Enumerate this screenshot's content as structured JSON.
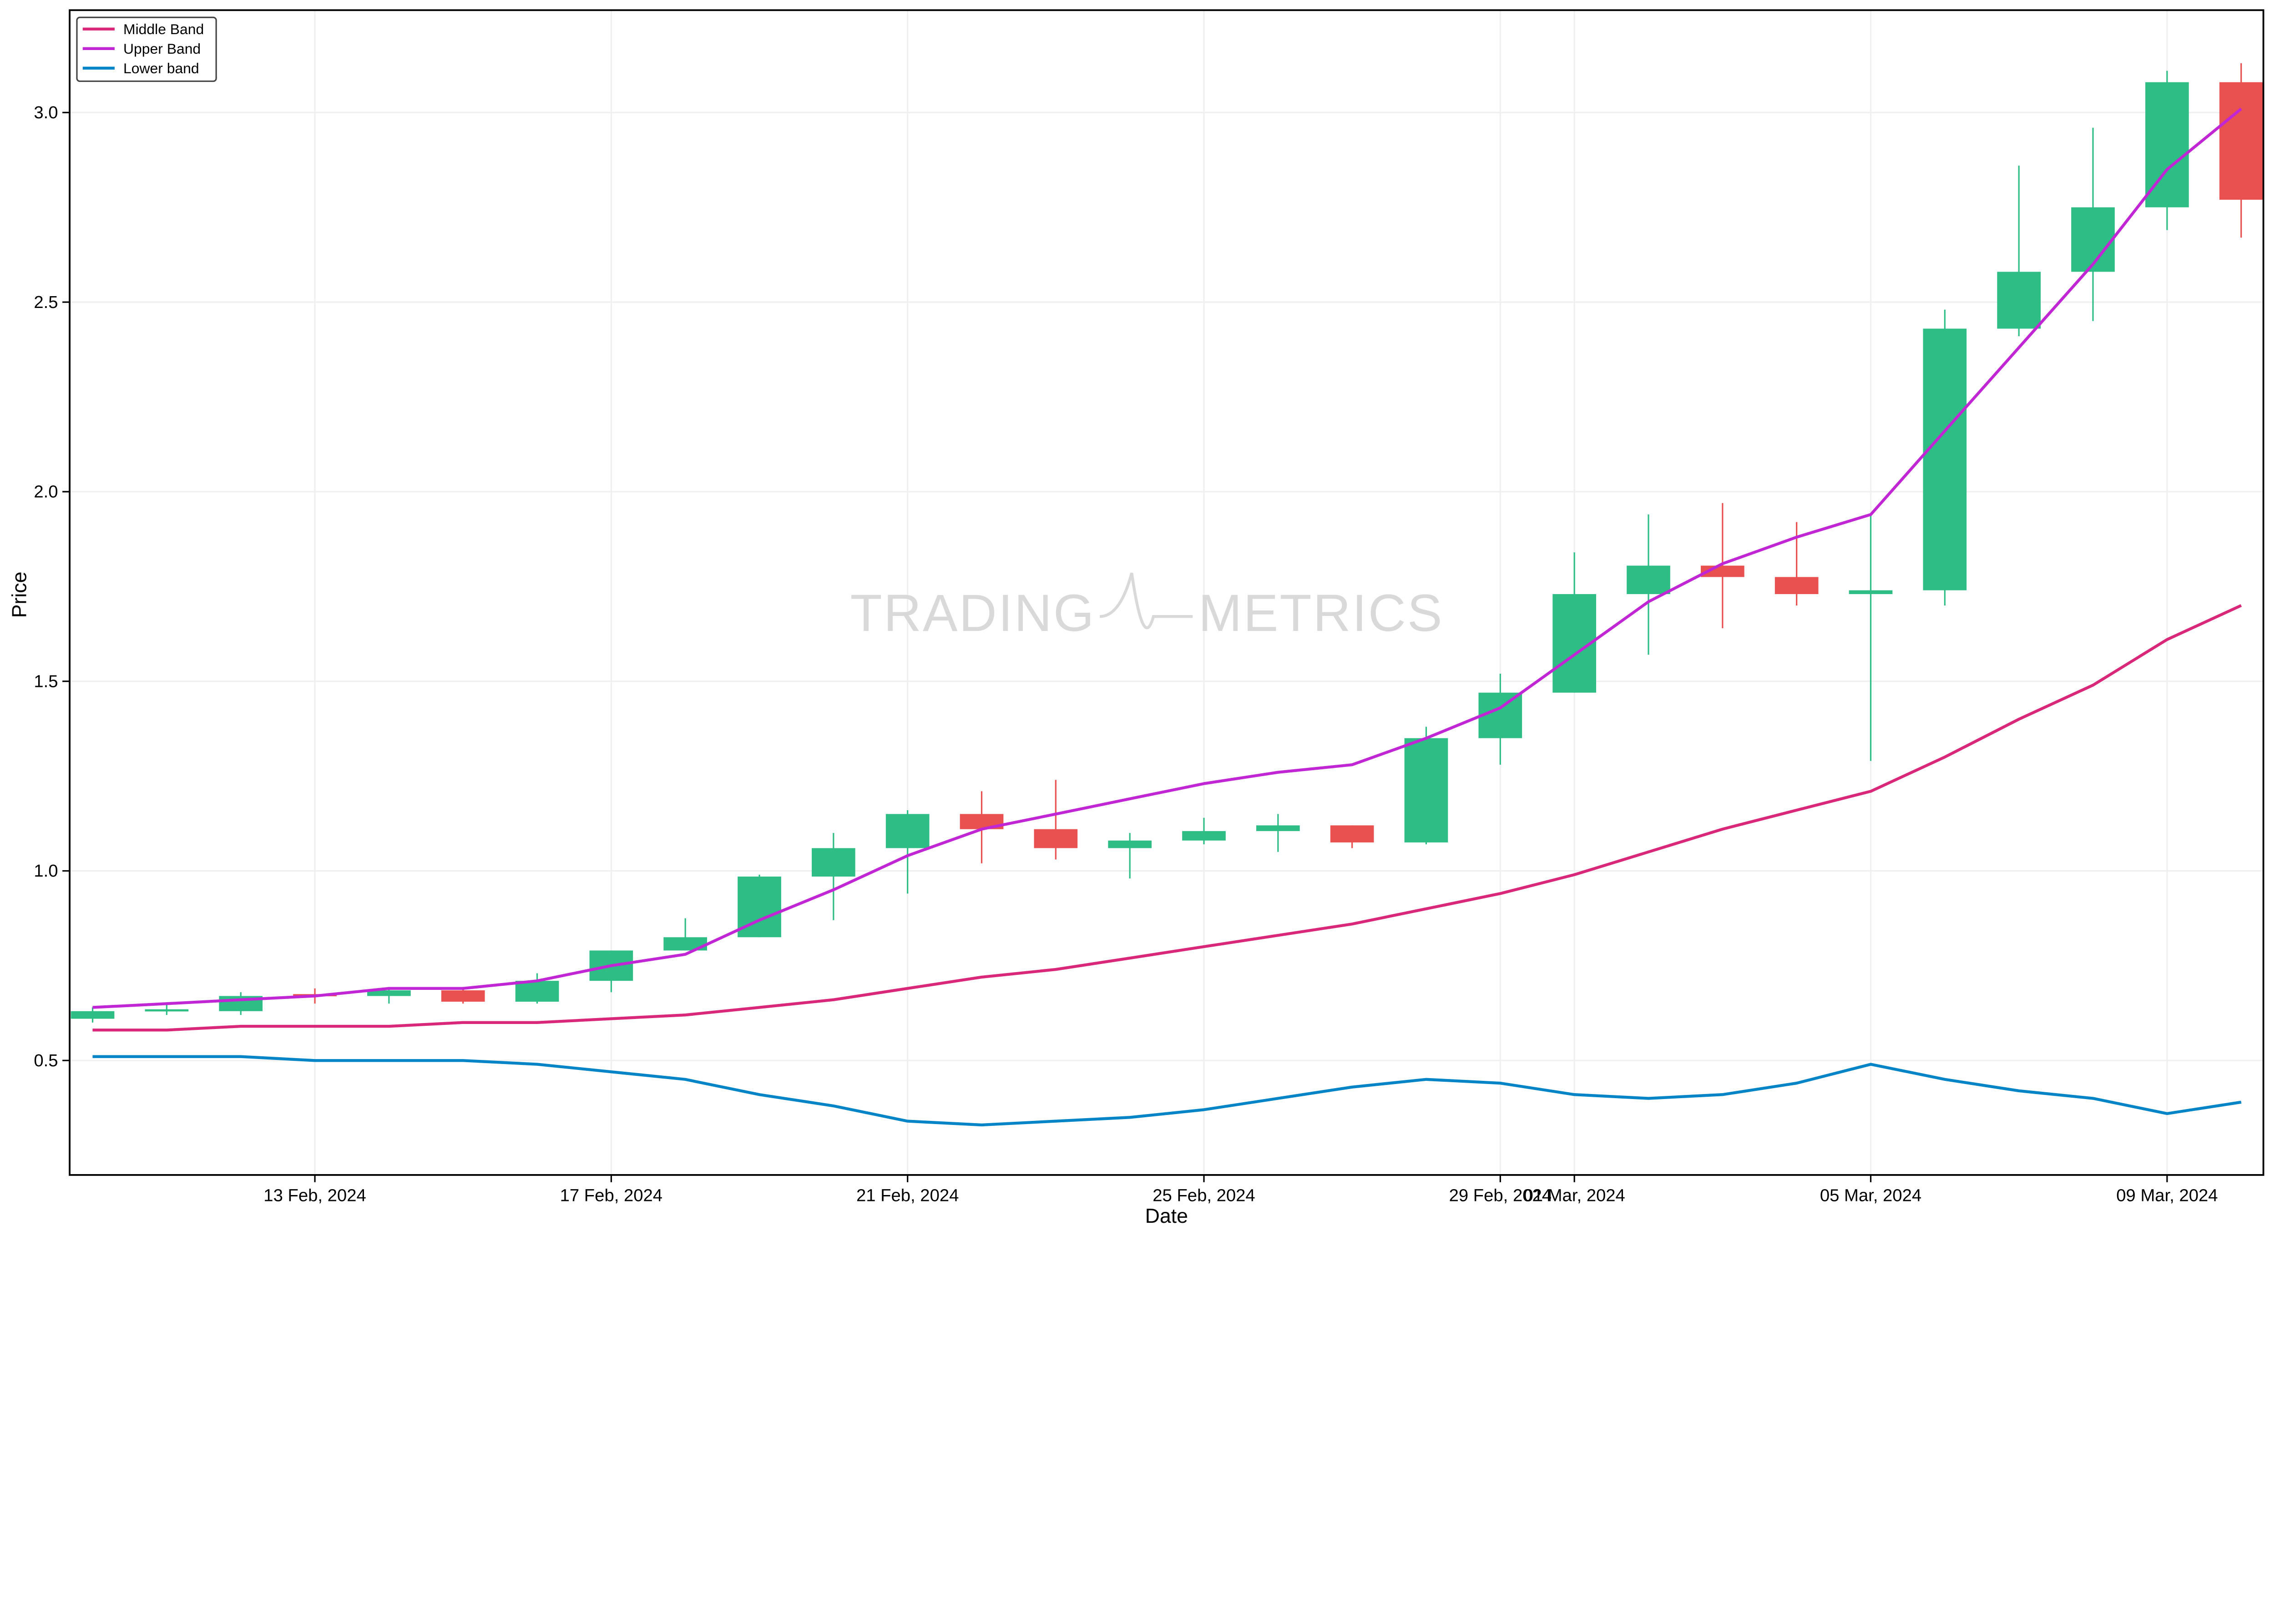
{
  "chart_data": {
    "type": "candlestick",
    "xlabel": "Date",
    "ylabel": "Price",
    "ylim": [
      0.198,
      3.27
    ],
    "grid": true,
    "legend_position": "top-left",
    "watermark": {
      "left": "TRADING",
      "right": "METRICS"
    },
    "dates": [
      "10 Feb",
      "11 Feb",
      "12 Feb",
      "13 Feb",
      "14 Feb",
      "15 Feb",
      "16 Feb",
      "17 Feb",
      "18 Feb",
      "19 Feb",
      "20 Feb",
      "21 Feb",
      "22 Feb",
      "23 Feb",
      "24 Feb",
      "25 Feb",
      "26 Feb",
      "27 Feb",
      "28 Feb",
      "29 Feb",
      "01 Mar",
      "02 Mar",
      "03 Mar",
      "04 Mar",
      "05 Mar",
      "06 Mar",
      "07 Mar",
      "08 Mar",
      "09 Mar",
      "10 Mar"
    ],
    "x_ticks": [
      {
        "index": 3,
        "label": "13 Feb, 2024"
      },
      {
        "index": 7,
        "label": "17 Feb, 2024"
      },
      {
        "index": 11,
        "label": "21 Feb, 2024"
      },
      {
        "index": 15,
        "label": "25 Feb, 2024"
      },
      {
        "index": 19,
        "label": "29 Feb, 2024"
      },
      {
        "index": 20,
        "label": "01 Mar, 2024"
      },
      {
        "index": 24,
        "label": "05 Mar, 2024"
      },
      {
        "index": 28,
        "label": "09 Mar, 2024"
      }
    ],
    "y_ticks": [
      {
        "value": 0.5,
        "label": "0.5"
      },
      {
        "value": 1.0,
        "label": "1.0"
      },
      {
        "value": 1.5,
        "label": "1.5"
      },
      {
        "value": 2.0,
        "label": "2.0"
      },
      {
        "value": 2.5,
        "label": "2.5"
      },
      {
        "value": 3.0,
        "label": "3.0"
      }
    ],
    "ohlc": [
      [
        0.61,
        0.64,
        0.6,
        0.63
      ],
      [
        0.63,
        0.65,
        0.62,
        0.635
      ],
      [
        0.63,
        0.68,
        0.62,
        0.67
      ],
      [
        0.675,
        0.69,
        0.65,
        0.67
      ],
      [
        0.67,
        0.69,
        0.65,
        0.685
      ],
      [
        0.685,
        0.69,
        0.65,
        0.655
      ],
      [
        0.655,
        0.73,
        0.65,
        0.71
      ],
      [
        0.71,
        0.79,
        0.68,
        0.79
      ],
      [
        0.79,
        0.875,
        0.79,
        0.825
      ],
      [
        0.825,
        0.99,
        0.825,
        0.985
      ],
      [
        0.985,
        1.1,
        0.87,
        1.06
      ],
      [
        1.06,
        1.16,
        0.94,
        1.15
      ],
      [
        1.15,
        1.21,
        1.02,
        1.11
      ],
      [
        1.11,
        1.24,
        1.03,
        1.06
      ],
      [
        1.06,
        1.1,
        0.98,
        1.08
      ],
      [
        1.08,
        1.14,
        1.07,
        1.105
      ],
      [
        1.105,
        1.15,
        1.05,
        1.12
      ],
      [
        1.12,
        1.12,
        1.06,
        1.075
      ],
      [
        1.075,
        1.38,
        1.07,
        1.35
      ],
      [
        1.35,
        1.52,
        1.28,
        1.47
      ],
      [
        1.47,
        1.84,
        1.47,
        1.73
      ],
      [
        1.73,
        1.94,
        1.57,
        1.805
      ],
      [
        1.805,
        1.97,
        1.64,
        1.775
      ],
      [
        1.775,
        1.92,
        1.7,
        1.73
      ],
      [
        1.73,
        1.94,
        1.29,
        1.74
      ],
      [
        1.74,
        2.48,
        1.7,
        2.43
      ],
      [
        2.43,
        2.86,
        2.41,
        2.58
      ],
      [
        2.58,
        2.96,
        2.45,
        2.75
      ],
      [
        2.75,
        3.11,
        2.69,
        3.08
      ],
      [
        3.08,
        3.13,
        2.67,
        2.77
      ]
    ],
    "series": [
      {
        "name": "Middle Band",
        "color": "#d9287a",
        "values": [
          0.58,
          0.58,
          0.59,
          0.59,
          0.59,
          0.6,
          0.6,
          0.61,
          0.62,
          0.64,
          0.66,
          0.69,
          0.72,
          0.74,
          0.77,
          0.8,
          0.83,
          0.86,
          0.9,
          0.94,
          0.99,
          1.05,
          1.11,
          1.16,
          1.21,
          1.3,
          1.4,
          1.49,
          1.61,
          1.7
        ]
      },
      {
        "name": "Upper Band",
        "color": "#c026d3",
        "values": [
          0.64,
          0.65,
          0.66,
          0.67,
          0.69,
          0.69,
          0.71,
          0.75,
          0.78,
          0.87,
          0.95,
          1.04,
          1.11,
          1.15,
          1.19,
          1.23,
          1.26,
          1.28,
          1.35,
          1.43,
          1.57,
          1.71,
          1.81,
          1.88,
          1.94,
          2.16,
          2.38,
          2.6,
          2.85,
          3.01
        ]
      },
      {
        "name": "Lower band",
        "color": "#0284c7",
        "values": [
          0.51,
          0.51,
          0.51,
          0.5,
          0.5,
          0.5,
          0.49,
          0.47,
          0.45,
          0.41,
          0.38,
          0.34,
          0.33,
          0.34,
          0.35,
          0.37,
          0.4,
          0.43,
          0.45,
          0.44,
          0.41,
          0.4,
          0.41,
          0.44,
          0.49,
          0.45,
          0.42,
          0.4,
          0.36,
          0.39
        ]
      }
    ],
    "up_color": "#2ebd85",
    "down_color": "#e95050"
  }
}
